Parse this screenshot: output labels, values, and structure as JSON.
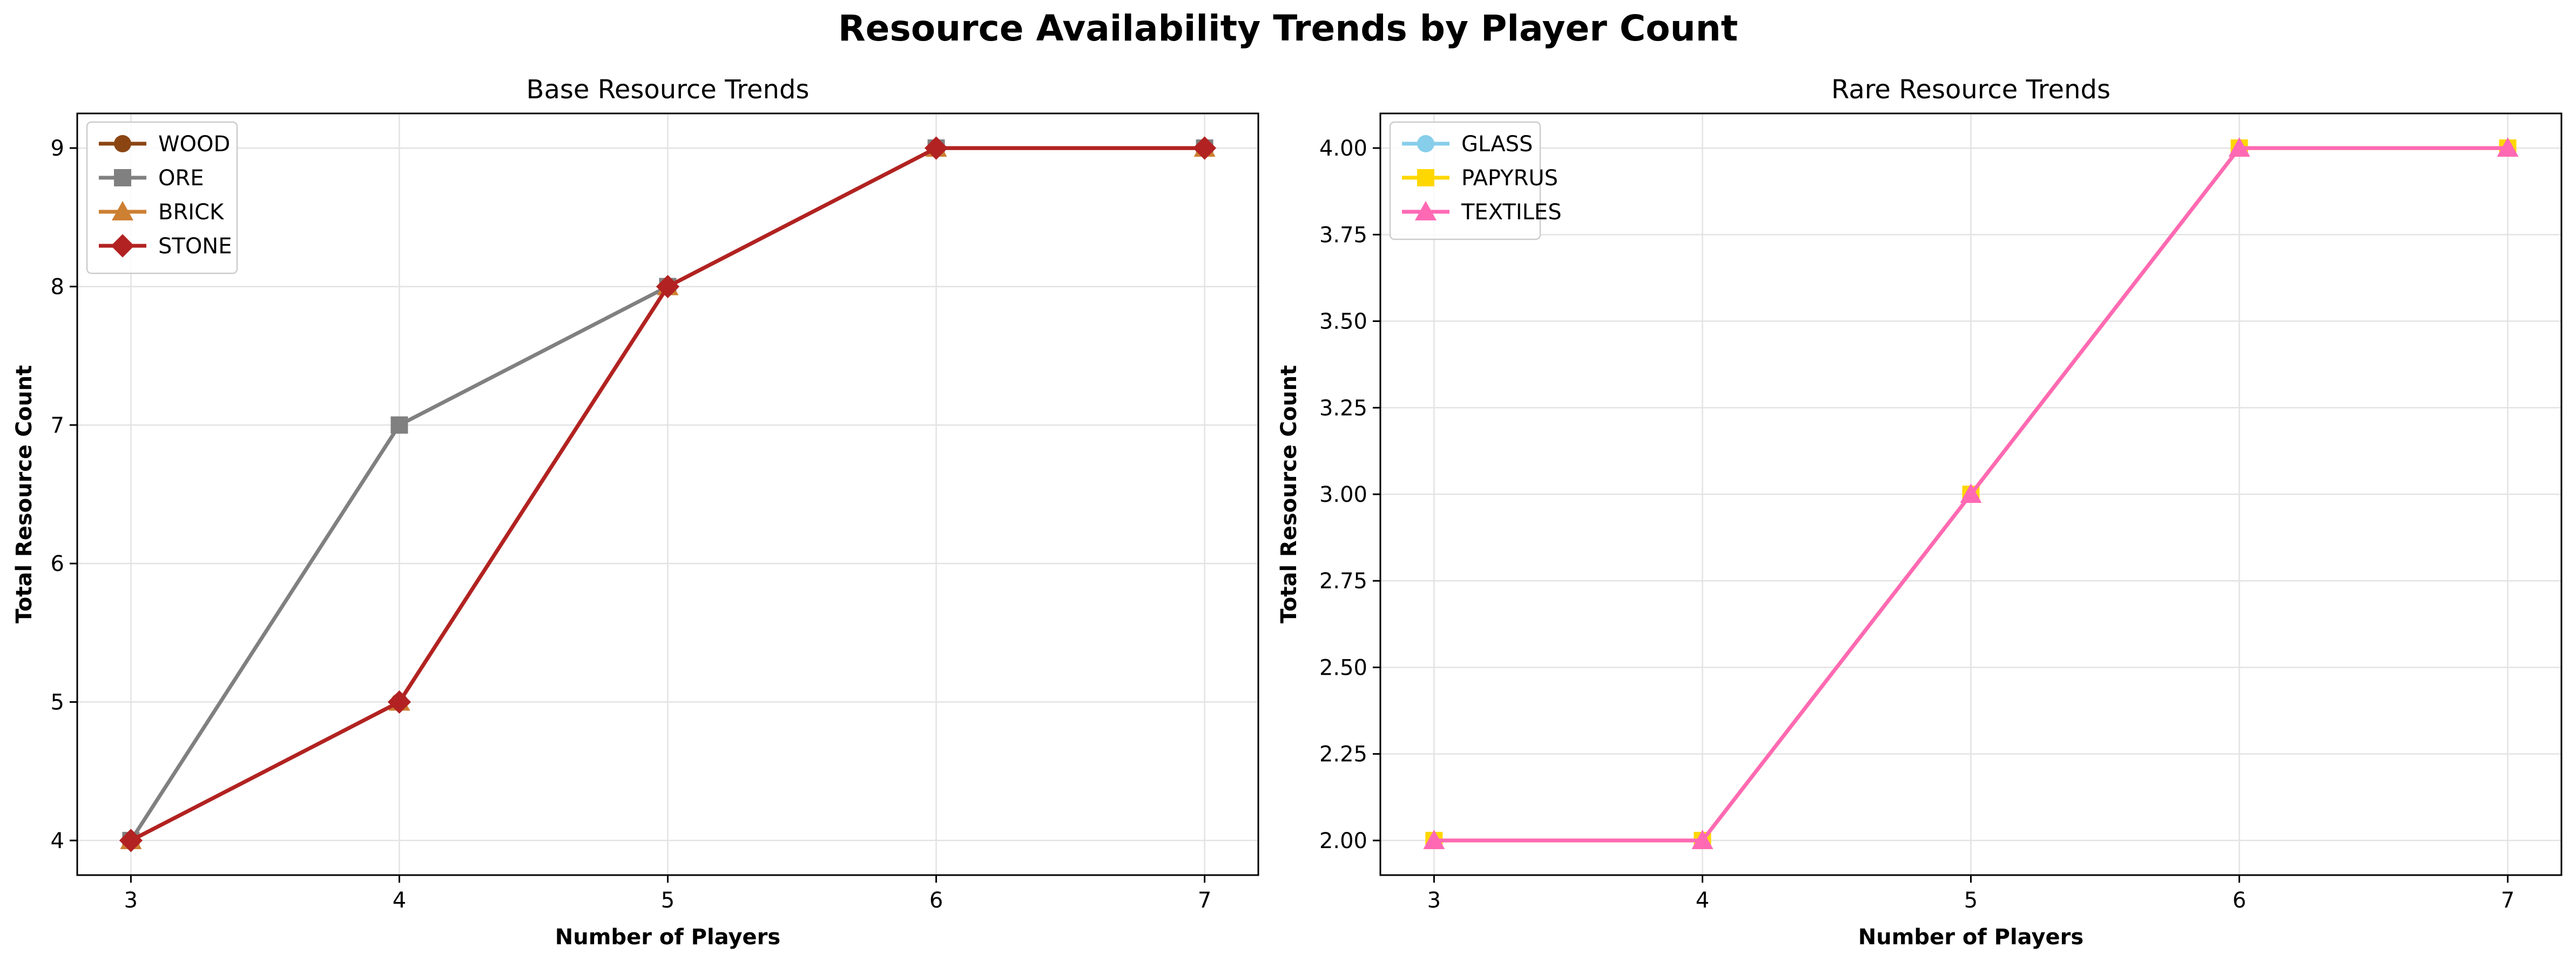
{
  "suptitle": "Resource Availability Trends by Player Count",
  "chart_data": [
    {
      "type": "line",
      "title": "Base Resource Trends",
      "xlabel": "Number of Players",
      "ylabel": "Total Resource Count",
      "x": [
        3,
        4,
        5,
        6,
        7
      ],
      "xlim": [
        2.8,
        7.2
      ],
      "ylim": [
        3.75,
        9.25
      ],
      "xticks": [
        "3",
        "4",
        "5",
        "6",
        "7"
      ],
      "yticks": [
        "4",
        "5",
        "6",
        "7",
        "8",
        "9"
      ],
      "ytick_values": [
        4,
        5,
        6,
        7,
        8,
        9
      ],
      "grid": true,
      "legend": "top-left",
      "series": [
        {
          "name": "WOOD",
          "values": [
            4,
            5,
            8,
            9,
            9
          ],
          "color": "#8B4513",
          "marker": "circle"
        },
        {
          "name": "ORE",
          "values": [
            4,
            7,
            8,
            9,
            9
          ],
          "color": "#808080",
          "marker": "square"
        },
        {
          "name": "BRICK",
          "values": [
            4,
            5,
            8,
            9,
            9
          ],
          "color": "#CD7F32",
          "marker": "triangle"
        },
        {
          "name": "STONE",
          "values": [
            4,
            5,
            8,
            9,
            9
          ],
          "color": "#B22222",
          "marker": "diamond"
        }
      ]
    },
    {
      "type": "line",
      "title": "Rare Resource Trends",
      "xlabel": "Number of Players",
      "ylabel": "Total Resource Count",
      "x": [
        3,
        4,
        5,
        6,
        7
      ],
      "xlim": [
        2.8,
        7.2
      ],
      "ylim": [
        1.9,
        4.1
      ],
      "xticks": [
        "3",
        "4",
        "5",
        "6",
        "7"
      ],
      "yticks": [
        "2.00",
        "2.25",
        "2.50",
        "2.75",
        "3.00",
        "3.25",
        "3.50",
        "3.75",
        "4.00"
      ],
      "ytick_values": [
        2.0,
        2.25,
        2.5,
        2.75,
        3.0,
        3.25,
        3.5,
        3.75,
        4.0
      ],
      "grid": true,
      "legend": "top-left",
      "series": [
        {
          "name": "GLASS",
          "values": [
            2,
            2,
            3,
            4,
            4
          ],
          "color": "#87CEEB",
          "marker": "circle"
        },
        {
          "name": "PAPYRUS",
          "values": [
            2,
            2,
            3,
            4,
            4
          ],
          "color": "#FFD700",
          "marker": "square"
        },
        {
          "name": "TEXTILES",
          "values": [
            2,
            2,
            3,
            4,
            4
          ],
          "color": "#FF69B4",
          "marker": "triangle"
        }
      ]
    }
  ]
}
